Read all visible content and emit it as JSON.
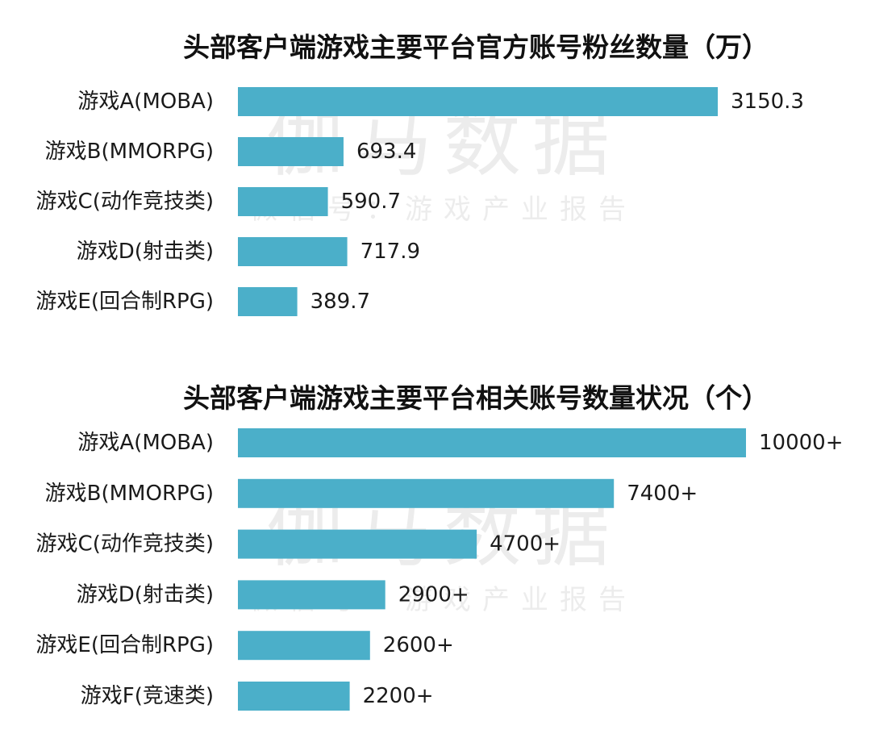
{
  "watermark": {
    "main": "伽马数据",
    "sub": "微信号：游戏产业报告"
  },
  "colors": {
    "bar": "#4bafc9"
  },
  "chart_data": [
    {
      "type": "bar",
      "orientation": "horizontal",
      "title": "头部客户端游戏主要平台官方账号粉丝数量（万）",
      "categories": [
        "游戏A(MOBA)",
        "游戏B(MMORPG)",
        "游戏C(动作竞技类)",
        "游戏D(射击类)",
        "游戏E(回合制RPG)"
      ],
      "values": [
        3150.3,
        693.4,
        590.7,
        717.9,
        389.7
      ],
      "value_labels": [
        "3150.3",
        "693.4",
        "590.7",
        "717.9",
        "389.7"
      ],
      "xlim": [
        0,
        3150.3
      ],
      "grid": false,
      "legend": "none"
    },
    {
      "type": "bar",
      "orientation": "horizontal",
      "title": "头部客户端游戏主要平台相关账号数量状况（个）",
      "categories": [
        "游戏A(MOBA)",
        "游戏B(MMORPG)",
        "游戏C(动作竞技类)",
        "游戏D(射击类)",
        "游戏E(回合制RPG)",
        "游戏F(竞速类)"
      ],
      "values": [
        10000,
        7400,
        4700,
        2900,
        2600,
        2200
      ],
      "value_labels": [
        "10000+",
        "7400+",
        "4700+",
        "2900+",
        "2600+",
        "2200+"
      ],
      "xlim": [
        0,
        10000
      ],
      "grid": false,
      "legend": "none"
    }
  ]
}
